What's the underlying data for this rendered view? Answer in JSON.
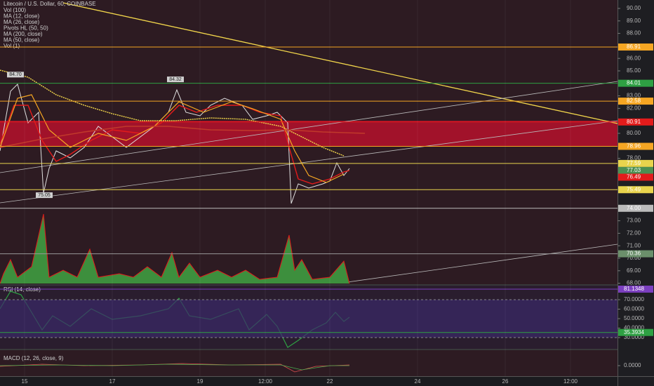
{
  "header": {
    "symbol": "Litecoin / U.S. Dollar, 60, COINBASE",
    "indicators": [
      "Vol (100)",
      "MA (12, close)",
      "MA (26, close)",
      "Pivots HL (50, 50)",
      "MA (200, close)",
      "MA (50, close)",
      "Vol (1)"
    ]
  },
  "price_axis": {
    "ticks": [
      {
        "value": 90,
        "label": "90.00"
      },
      {
        "value": 89,
        "label": "89.00"
      },
      {
        "value": 88,
        "label": "88.00"
      },
      {
        "value": 86,
        "label": "86.00"
      },
      {
        "value": 85,
        "label": "85.00"
      },
      {
        "value": 83,
        "label": "83.00"
      },
      {
        "value": 82,
        "label": "82.00"
      },
      {
        "value": 80,
        "label": "80.00"
      },
      {
        "value": 78,
        "label": "78.00"
      },
      {
        "value": 73,
        "label": "73.00"
      },
      {
        "value": 72,
        "label": "72.00"
      },
      {
        "value": 71,
        "label": "71.00"
      },
      {
        "value": 70,
        "label": "70.00"
      },
      {
        "value": 69,
        "label": "69.00"
      },
      {
        "value": 68,
        "label": "68.00"
      }
    ]
  },
  "price_badges": [
    {
      "value": 86.91,
      "label": "86.91",
      "color": "#f5a623",
      "line": "#f5a623"
    },
    {
      "value": 84.01,
      "label": "84.01",
      "color": "#2ea043",
      "line": "#2ea043"
    },
    {
      "value": 82.58,
      "label": "82.58",
      "color": "#f5a623",
      "line": "#f5a623"
    },
    {
      "value": 80.91,
      "label": "80.91",
      "color": "#e31b1b",
      "line": "#e31b1b"
    },
    {
      "value": 78.96,
      "label": "78.96",
      "color": "#f5a623",
      "line": "#f5a623"
    },
    {
      "value": 77.59,
      "label": "77.59",
      "color": "#e8d44d",
      "line": "#e8d44d"
    },
    {
      "value": 77.03,
      "label": "77.03",
      "color": "#4c8f52",
      "line": null
    },
    {
      "value": 76.49,
      "label": "76.49",
      "color": "#e31b1b",
      "line": null
    },
    {
      "value": 75.49,
      "label": "75.49",
      "color": "#e8d44d",
      "line": "#e8d44d"
    },
    {
      "value": 74.0,
      "label": "74.00",
      "color": "#bbbbbb",
      "line": "#bbbbbb"
    },
    {
      "value": 70.36,
      "label": "70.36",
      "color": "#6b8f6b",
      "line": "#999999"
    }
  ],
  "chart_labels": [
    {
      "label": "84.70",
      "value": 84.7,
      "x": 22
    },
    {
      "label": "84.32",
      "value": 84.32,
      "x": 250
    },
    {
      "label": "75.05",
      "value": 75.05,
      "x": 63
    }
  ],
  "rsi": {
    "title": "RSI (14, close)",
    "ticks": [
      {
        "value": 70,
        "label": "70.0000"
      },
      {
        "value": 60,
        "label": "60.0000"
      },
      {
        "value": 50,
        "label": "50.0000"
      },
      {
        "value": 40,
        "label": "40.0000"
      },
      {
        "value": 30,
        "label": "30.0000"
      }
    ],
    "badges": [
      {
        "value": 81.1348,
        "label": "81.1348",
        "color": "#7b3fbf"
      },
      {
        "value": 35.3934,
        "label": "35.3934",
        "color": "#2ea043"
      }
    ]
  },
  "macd": {
    "title": "MACD (12, 26, close, 9)",
    "ticks": [
      {
        "value": 0,
        "label": "0.0000"
      }
    ]
  },
  "time_axis": {
    "labels": [
      "15",
      "17",
      "19",
      "12:00",
      "22",
      "24",
      "26",
      "12:00"
    ]
  }
}
